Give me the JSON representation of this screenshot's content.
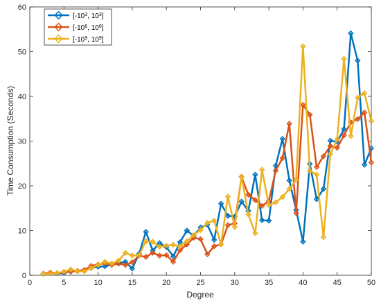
{
  "chart_data": {
    "type": "line",
    "xlabel": "Degree",
    "ylabel": "Time Consumption (Seconds)",
    "xlim": [
      0,
      50
    ],
    "ylim": [
      0,
      60
    ],
    "xticks": [
      0,
      5,
      10,
      15,
      20,
      25,
      30,
      35,
      40,
      45,
      50
    ],
    "yticks": [
      0,
      10,
      20,
      30,
      40,
      50,
      60
    ],
    "grid": false,
    "legend_position": "top-left",
    "x": [
      2,
      3,
      4,
      5,
      6,
      7,
      8,
      9,
      10,
      11,
      12,
      13,
      14,
      15,
      16,
      17,
      18,
      19,
      20,
      21,
      22,
      23,
      24,
      25,
      26,
      27,
      28,
      29,
      30,
      31,
      32,
      33,
      34,
      35,
      36,
      37,
      38,
      39,
      40,
      41,
      42,
      43,
      44,
      45,
      46,
      47,
      48,
      49,
      50
    ],
    "series": [
      {
        "name_base": "[-10",
        "name_exp1": "3",
        "name_mid": ", 10",
        "name_exp2": "3",
        "name_end": "]",
        "color": "#0072BD",
        "values": [
          0.3,
          0.4,
          0.4,
          0.5,
          0.9,
          0.9,
          1.1,
          1.6,
          1.9,
          2.0,
          2.4,
          2.7,
          3.0,
          1.5,
          4.8,
          9.7,
          5.5,
          7.2,
          6.3,
          4.2,
          7.4,
          10.0,
          8.8,
          10.7,
          11.3,
          7.9,
          16.0,
          13.3,
          13.1,
          16.5,
          14.4,
          22.5,
          12.3,
          12.2,
          24.5,
          30.5,
          21.2,
          14.6,
          7.5,
          24.9,
          17.0,
          19.3,
          30.1,
          29.8,
          32.7,
          54.1,
          48.0,
          24.7,
          28.4
        ]
      },
      {
        "name_base": "[-10",
        "name_exp1": "6",
        "name_mid": ", 10",
        "name_exp2": "6",
        "name_end": "]",
        "color": "#D95319",
        "values": [
          0.4,
          0.6,
          0.5,
          0.7,
          0.8,
          1.0,
          1.2,
          2.1,
          2.4,
          2.7,
          2.3,
          2.6,
          2.3,
          2.9,
          4.4,
          4.1,
          5.0,
          4.4,
          4.5,
          3.0,
          5.6,
          6.9,
          8.4,
          8.1,
          4.7,
          6.5,
          6.9,
          11.2,
          11.6,
          22.0,
          18.0,
          16.8,
          15.5,
          16.6,
          23.4,
          26.2,
          33.9,
          13.9,
          38.1,
          35.9,
          24.2,
          26.6,
          28.9,
          28.5,
          31.3,
          34.2,
          34.9,
          36.4,
          25.2
        ]
      },
      {
        "name_base": "[-10",
        "name_exp1": "9",
        "name_mid": ", 10",
        "name_exp2": "9",
        "name_end": "]",
        "color": "#EDB120",
        "values": [
          0.3,
          0.4,
          0.5,
          0.8,
          1.3,
          0.9,
          0.9,
          1.6,
          2.3,
          3.0,
          2.6,
          3.3,
          5.0,
          4.4,
          4.5,
          7.6,
          7.5,
          6.4,
          6.6,
          6.8,
          6.5,
          7.6,
          9.0,
          10.1,
          11.7,
          12.2,
          6.9,
          17.6,
          10.8,
          22.1,
          13.6,
          9.4,
          23.6,
          15.7,
          16.3,
          17.5,
          19.3,
          21.3,
          51.2,
          23.3,
          22.5,
          8.5,
          27.1,
          30.4,
          48.4,
          31.1,
          39.7,
          40.7,
          34.5
        ]
      }
    ]
  }
}
